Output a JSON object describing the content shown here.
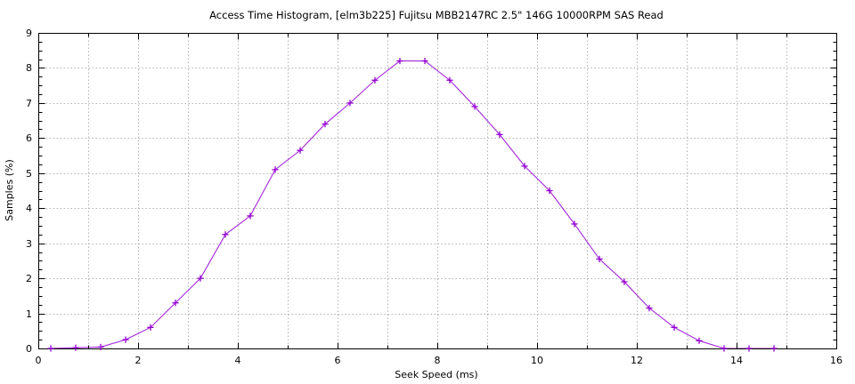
{
  "window": {
    "background": "#ffffff"
  },
  "chart_data": {
    "type": "line",
    "title": "Access Time Histogram, [elm3b225] Fujitsu MBB2147RC 2.5\" 146G 10000RPM SAS Read",
    "xlabel": "Seek Speed (ms)",
    "ylabel": "Samples (%)",
    "xlim": [
      0,
      16
    ],
    "ylim": [
      0,
      9
    ],
    "xtick_labels": [
      "0",
      "2",
      "4",
      "6",
      "8",
      "10",
      "12",
      "14",
      "16"
    ],
    "xticks": [
      0,
      2,
      4,
      6,
      8,
      10,
      12,
      14,
      16
    ],
    "ytick_labels": [
      "0",
      "1",
      "2",
      "3",
      "4",
      "5",
      "6",
      "7",
      "8",
      "9"
    ],
    "yticks": [
      0,
      1,
      2,
      3,
      4,
      5,
      6,
      7,
      8,
      9
    ],
    "x_minor_step": 1,
    "y_minor_step": 0.25,
    "grid": "dotted gray at every 1 unit on both axes",
    "legend": "none",
    "series": [
      {
        "name": "access-time-samples",
        "marker": "plus",
        "line_color": "#9400d3",
        "marker_color": "#9400d3",
        "x": [
          0.25,
          0.75,
          1.25,
          1.75,
          2.25,
          2.75,
          3.25,
          3.75,
          4.25,
          4.75,
          5.25,
          5.75,
          6.25,
          6.75,
          7.25,
          7.75,
          8.25,
          8.75,
          9.25,
          9.75,
          10.25,
          10.75,
          11.25,
          11.75,
          12.25,
          12.75,
          13.25,
          13.75,
          14.25,
          14.75
        ],
        "y": [
          0.0,
          0.02,
          0.04,
          0.25,
          0.6,
          1.3,
          2.0,
          3.25,
          3.78,
          5.1,
          5.65,
          6.4,
          7.0,
          7.65,
          8.2,
          8.2,
          7.65,
          6.9,
          6.1,
          5.2,
          4.5,
          3.55,
          2.55,
          1.9,
          1.15,
          0.6,
          0.22,
          0.0,
          0.0,
          0.0
        ]
      }
    ]
  },
  "colors": {
    "grid": "#b3b3b3",
    "border": "#000000",
    "series": "#9400d3",
    "text": "#000000"
  }
}
